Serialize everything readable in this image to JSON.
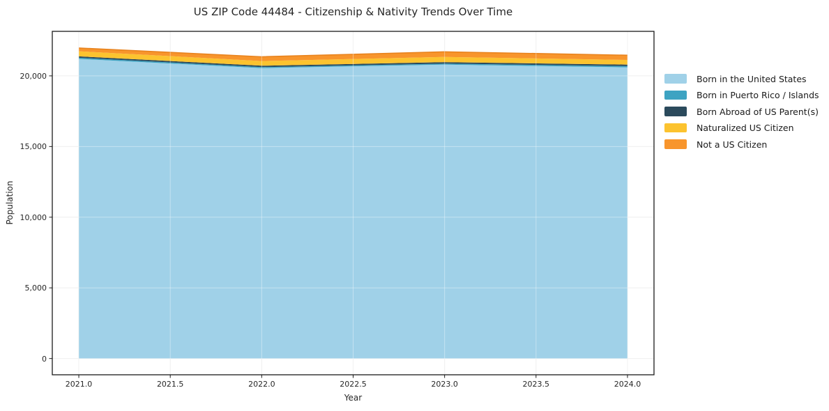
{
  "chart_data": {
    "type": "area",
    "stacked": true,
    "title": "US ZIP Code 44484 - Citizenship & Nativity Trends Over Time",
    "xlabel": "Year",
    "ylabel": "Population",
    "x": [
      2021,
      2022,
      2023,
      2024
    ],
    "series": [
      {
        "name": "Born in the United States",
        "color": "#a0d1e8",
        "values": [
          21200,
          20550,
          20800,
          20600
        ]
      },
      {
        "name": "Born in Puerto Rico / Islands",
        "color": "#3da3c2",
        "values": [
          80,
          70,
          70,
          90
        ]
      },
      {
        "name": "Born Abroad of US Parent(s)",
        "color": "#2b4a5c",
        "values": [
          100,
          100,
          100,
          110
        ]
      },
      {
        "name": "Naturalized US Citizen",
        "color": "#fcc32f",
        "values": [
          360,
          330,
          370,
          330
        ]
      },
      {
        "name": "Not a US Citizen",
        "color": "#f8952c",
        "values": [
          230,
          300,
          360,
          330
        ]
      }
    ],
    "totals": [
      21970,
      21350,
      21700,
      21460
    ],
    "xlim": [
      2020.855,
      2024.145
    ],
    "ylim": [
      -1150,
      23150
    ],
    "x_ticks": {
      "values": [
        2021.0,
        2021.5,
        2022.0,
        2022.5,
        2023.0,
        2023.5,
        2024.0
      ],
      "labels": [
        "2021.0",
        "2021.5",
        "2022.0",
        "2022.5",
        "2023.0",
        "2023.5",
        "2024.0"
      ]
    },
    "y_ticks": {
      "values": [
        0,
        5000,
        10000,
        15000,
        20000
      ],
      "labels": [
        "0",
        "5,000",
        "10,000",
        "15,000",
        "20,000"
      ]
    },
    "grid": true,
    "grid_color": "#e8e8e8",
    "legend_position": "right",
    "total_edge_color": "#e8831e",
    "spine_color": "#1a1a1a"
  }
}
